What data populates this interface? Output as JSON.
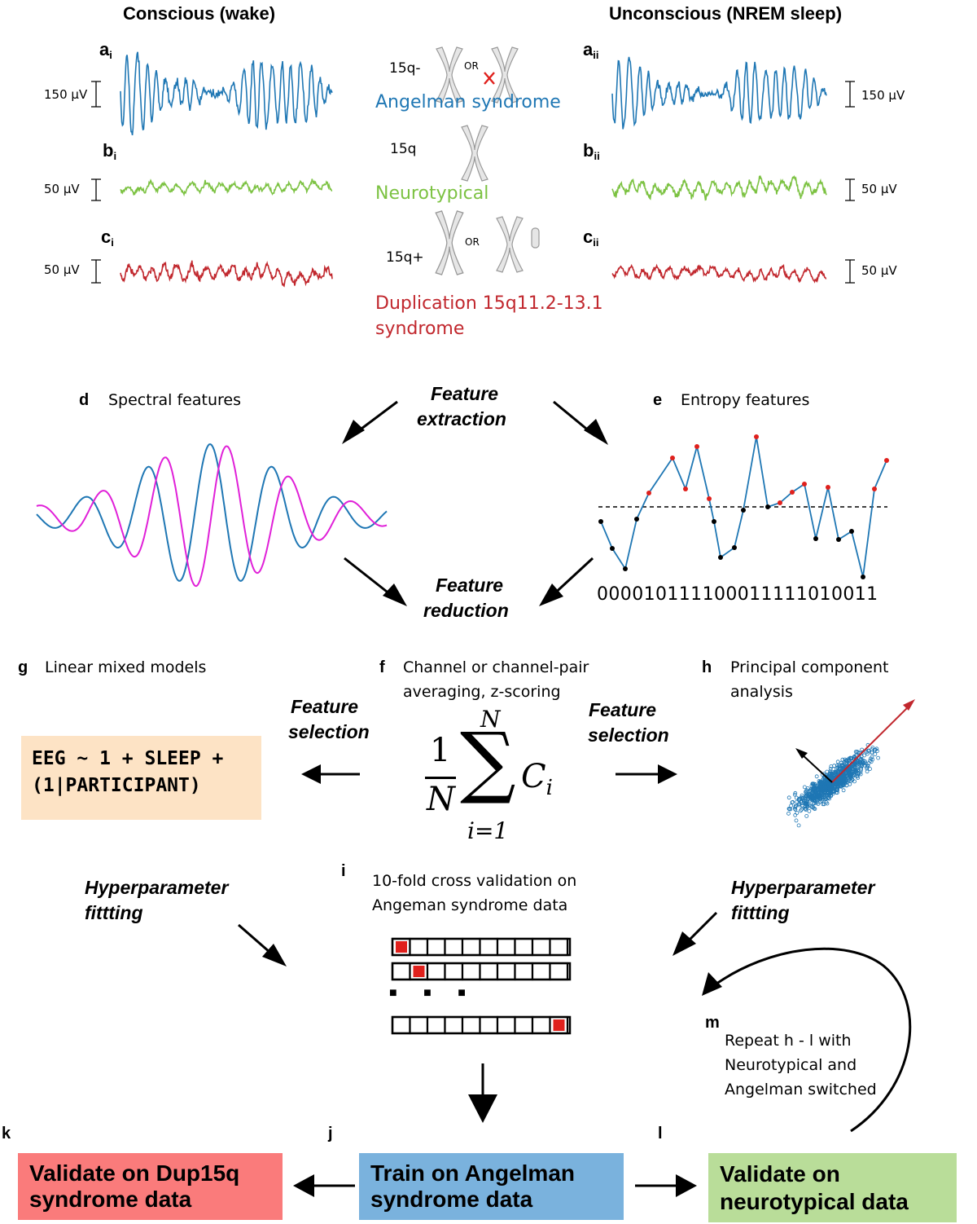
{
  "titles": {
    "conscious": "Conscious (wake)",
    "unconscious": "Unconscious (NREM sleep)"
  },
  "panels": {
    "a_i": {
      "letter": "a",
      "sub": "i"
    },
    "b_i": {
      "letter": "b",
      "sub": "i"
    },
    "c_i": {
      "letter": "c",
      "sub": "i"
    },
    "a_ii": {
      "letter": "a",
      "sub": "ii"
    },
    "b_ii": {
      "letter": "b",
      "sub": "ii"
    },
    "c_ii": {
      "letter": "c",
      "sub": "ii"
    },
    "d": "d",
    "e": "e",
    "f": "f",
    "g": "g",
    "h": "h",
    "i": "i",
    "j": "j",
    "k": "k",
    "l": "l",
    "m": "m"
  },
  "scale_bars": {
    "a_i": "150 µV",
    "b_i": "50 µV",
    "c_i": "50 µV",
    "a_ii": "150 µV",
    "b_ii": "50 µV",
    "c_ii": "50 µV"
  },
  "genotypes": {
    "angelman": {
      "code": "15q-",
      "or": "OR",
      "name": "Angelman syndrome",
      "color": "#1f77b4"
    },
    "neurotypical": {
      "code": "15q",
      "name": "Neurotypical",
      "color": "#7cc242"
    },
    "dup15q": {
      "code": "15q+",
      "or": "OR",
      "name_line1": "Duplication 15q11.2-13.1",
      "name_line2": "syndrome",
      "color": "#c1272d"
    }
  },
  "pipeline": {
    "feature_extraction": [
      "Feature",
      "extraction"
    ],
    "feature_reduction": [
      "Feature",
      "reduction"
    ],
    "spectral_features": "Spectral features",
    "entropy_features": "Entropy features",
    "binary_string": "000010111100011111010011",
    "linear_mixed_models": "Linear mixed models",
    "channel_averaging": [
      "Channel or channel-pair",
      "averaging, z-scoring"
    ],
    "pca": [
      "Principal component",
      "analysis"
    ],
    "feature_selection_left": [
      "Feature",
      "selection"
    ],
    "feature_selection_right": [
      "Feature",
      "selection"
    ],
    "formula": [
      "EEG ~ 1 + SLEEP +",
      "(1|PARTICIPANT)"
    ],
    "equation": {
      "numerator": "1",
      "denominator": "N",
      "upper": "N",
      "lower": "i=1",
      "term": "C",
      "term_sub": "i"
    },
    "hyperparameter_left": [
      "Hyperparameter",
      "fittting"
    ],
    "hyperparameter_right": [
      "Hyperparameter",
      "fittting"
    ],
    "cross_validation": [
      "10-fold cross validation on",
      "Angeman syndrome data"
    ],
    "ellipsis": "■ ■ ■",
    "repeat": [
      "Repeat h - l with",
      "Neurotypical and",
      "Angelman switched"
    ],
    "validate_dup15q": [
      "Validate on Dup15q",
      "syndrome data"
    ],
    "train_angelman": [
      "Train on Angelman",
      "syndrome data"
    ],
    "validate_neurotypical": [
      "Validate on",
      "neurotypical data"
    ]
  },
  "colors": {
    "blue": "#1f77b4",
    "green": "#7cc242",
    "red": "#c1272d",
    "magenta": "#e020d8",
    "formula_bg": "#fde3c5",
    "dup15q_box": "#fa7b7b",
    "train_box": "#7ab2dd",
    "neurotypical_box": "#b9dd99"
  }
}
